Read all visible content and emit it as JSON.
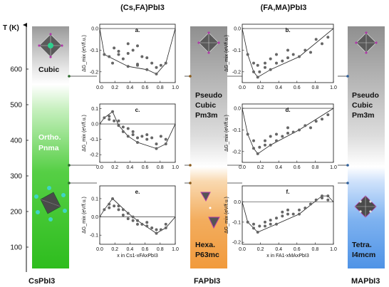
{
  "figure": {
    "col_titles": [
      "(Cs,FA)PbI3",
      "(FA,MA)PbI3"
    ],
    "temp_axis": {
      "label": "T (K)",
      "ticks": [
        100,
        200,
        300,
        400,
        500,
        600
      ],
      "range": [
        40,
        720
      ]
    },
    "bottom_labels": [
      "CsPbI3",
      "FAPbI3",
      "MAPbI3"
    ],
    "bars": {
      "cs": {
        "labels": [
          "Cubic",
          "Ortho.",
          "Pnma"
        ],
        "colors": [
          "#bdbdbd",
          "#3ec43e"
        ]
      },
      "fa": {
        "labels": [
          "Pseudo",
          "Cubic",
          "Pm3m",
          "Hexa.",
          "P63mc"
        ],
        "colors": [
          "#bdbdbd",
          "#f2a64c"
        ]
      },
      "ma": {
        "labels": [
          "Pseudo",
          "Cubic",
          "Pm3m",
          "Tetra.",
          "I4mcm"
        ],
        "colors": [
          "#bdbdbd",
          "#5a9de8"
        ]
      }
    },
    "marker_temps": {
      "cs": [
        580,
        330,
        280
      ],
      "fa": [
        580,
        330,
        280
      ],
      "ma": [
        580,
        330,
        280
      ]
    }
  },
  "chart_data": [
    {
      "type": "scatter",
      "panel": "a.",
      "column": "(Cs,FA)PbI3",
      "ylabel": "ΔG_mix (eV/f.u.)",
      "xlim": [
        0,
        1
      ],
      "ylim": [
        -0.25,
        0.02
      ],
      "yticks": [
        0.0,
        -0.1,
        -0.2
      ],
      "xticks": [
        0.0,
        0.2,
        0.4,
        0.6,
        0.8,
        1.0
      ],
      "show_xticks": true,
      "xlabel": "",
      "hull": [
        [
          0,
          0
        ],
        [
          0.06,
          -0.12
        ],
        [
          0.375,
          -0.175
        ],
        [
          0.625,
          -0.19
        ],
        [
          0.75,
          -0.21
        ],
        [
          0.875,
          -0.16
        ],
        [
          1,
          0
        ]
      ],
      "points": [
        [
          0.06,
          -0.12
        ],
        [
          0.125,
          -0.13
        ],
        [
          0.17,
          -0.16
        ],
        [
          0.19,
          -0.09
        ],
        [
          0.25,
          -0.12
        ],
        [
          0.25,
          -0.105
        ],
        [
          0.31,
          -0.14
        ],
        [
          0.375,
          -0.175
        ],
        [
          0.375,
          -0.07
        ],
        [
          0.375,
          -0.115
        ],
        [
          0.44,
          -0.1
        ],
        [
          0.5,
          -0.165
        ],
        [
          0.5,
          -0.17
        ],
        [
          0.5,
          -0.08
        ],
        [
          0.56,
          -0.13
        ],
        [
          0.625,
          -0.19
        ],
        [
          0.625,
          -0.135
        ],
        [
          0.69,
          -0.16
        ],
        [
          0.75,
          -0.21
        ],
        [
          0.75,
          -0.18
        ],
        [
          0.81,
          -0.17
        ],
        [
          0.875,
          -0.16
        ]
      ]
    },
    {
      "type": "scatter",
      "panel": "b.",
      "column": "(FA,MA)PbI3",
      "ylabel": "ΔG_mix (eV/f.u.)",
      "xlim": [
        0,
        1
      ],
      "ylim": [
        -0.25,
        0.02
      ],
      "yticks": [
        0.0,
        -0.1,
        -0.2
      ],
      "xticks": [
        0.0,
        0.2,
        0.4,
        0.6,
        0.8,
        1.0
      ],
      "show_xticks": true,
      "xlabel": "",
      "hull": [
        [
          0,
          0
        ],
        [
          0.06,
          -0.12
        ],
        [
          0.125,
          -0.2
        ],
        [
          0.17,
          -0.225
        ],
        [
          0.31,
          -0.19
        ],
        [
          0.625,
          -0.13
        ],
        [
          1,
          0
        ]
      ],
      "points": [
        [
          0.06,
          -0.12
        ],
        [
          0.125,
          -0.2
        ],
        [
          0.125,
          -0.16
        ],
        [
          0.17,
          -0.225
        ],
        [
          0.17,
          -0.17
        ],
        [
          0.19,
          -0.2
        ],
        [
          0.25,
          -0.16
        ],
        [
          0.25,
          -0.18
        ],
        [
          0.31,
          -0.19
        ],
        [
          0.31,
          -0.14
        ],
        [
          0.375,
          -0.16
        ],
        [
          0.375,
          -0.12
        ],
        [
          0.44,
          -0.15
        ],
        [
          0.5,
          -0.1
        ],
        [
          0.5,
          -0.135
        ],
        [
          0.56,
          -0.12
        ],
        [
          0.625,
          -0.13
        ],
        [
          0.69,
          -0.1
        ],
        [
          0.75,
          -0.11
        ],
        [
          0.81,
          -0.05
        ],
        [
          0.875,
          -0.07
        ],
        [
          0.94,
          -0.04
        ]
      ]
    },
    {
      "type": "scatter",
      "panel": "c.",
      "column": "(Cs,FA)PbI3",
      "ylabel": "ΔG_mix (eV/f.u.)",
      "xlim": [
        0,
        1
      ],
      "ylim": [
        -0.25,
        0.13
      ],
      "yticks": [
        0.1,
        0.0,
        -0.1,
        -0.2
      ],
      "xticks": [
        0.0,
        0.2,
        0.4,
        0.6,
        0.8,
        1.0
      ],
      "show_xticks": true,
      "xlabel": "",
      "hull": [
        [
          0,
          0
        ],
        [
          0.06,
          0.04
        ],
        [
          0.17,
          0.08
        ],
        [
          0.25,
          -0.01
        ],
        [
          0.375,
          -0.08
        ],
        [
          0.5,
          -0.12
        ],
        [
          0.75,
          -0.16
        ],
        [
          0.875,
          -0.13
        ],
        [
          1,
          0
        ]
      ],
      "points": [
        [
          0.06,
          0.04
        ],
        [
          0.125,
          0.05
        ],
        [
          0.125,
          0.03
        ],
        [
          0.17,
          0.08
        ],
        [
          0.19,
          0.02
        ],
        [
          0.25,
          0.02
        ],
        [
          0.25,
          -0.01
        ],
        [
          0.31,
          -0.02
        ],
        [
          0.31,
          -0.05
        ],
        [
          0.375,
          -0.08
        ],
        [
          0.375,
          -0.03
        ],
        [
          0.44,
          -0.05
        ],
        [
          0.44,
          -0.07
        ],
        [
          0.5,
          -0.12
        ],
        [
          0.5,
          -0.09
        ],
        [
          0.56,
          -0.08
        ],
        [
          0.625,
          -0.1
        ],
        [
          0.625,
          -0.07
        ],
        [
          0.69,
          -0.09
        ],
        [
          0.75,
          -0.16
        ],
        [
          0.75,
          -0.13
        ],
        [
          0.81,
          -0.08
        ],
        [
          0.875,
          -0.13
        ],
        [
          0.875,
          -0.1
        ]
      ]
    },
    {
      "type": "scatter",
      "panel": "d.",
      "column": "(FA,MA)PbI3",
      "ylabel": "ΔG_mix (eV/f.u.)",
      "xlim": [
        0,
        1
      ],
      "ylim": [
        -0.25,
        0.02
      ],
      "yticks": [
        0.0,
        -0.1,
        -0.2
      ],
      "xticks": [
        0.0,
        0.2,
        0.4,
        0.6,
        0.8,
        1.0
      ],
      "show_xticks": true,
      "xlabel": "",
      "hull": [
        [
          0,
          0
        ],
        [
          0.06,
          -0.12
        ],
        [
          0.125,
          -0.185
        ],
        [
          0.17,
          -0.21
        ],
        [
          0.31,
          -0.17
        ],
        [
          0.625,
          -0.1
        ],
        [
          1,
          0
        ]
      ],
      "points": [
        [
          0.06,
          -0.12
        ],
        [
          0.125,
          -0.185
        ],
        [
          0.125,
          -0.15
        ],
        [
          0.17,
          -0.21
        ],
        [
          0.19,
          -0.18
        ],
        [
          0.25,
          -0.15
        ],
        [
          0.25,
          -0.17
        ],
        [
          0.31,
          -0.17
        ],
        [
          0.31,
          -0.13
        ],
        [
          0.375,
          -0.15
        ],
        [
          0.375,
          -0.12
        ],
        [
          0.44,
          -0.13
        ],
        [
          0.5,
          -0.09
        ],
        [
          0.5,
          -0.115
        ],
        [
          0.56,
          -0.11
        ],
        [
          0.625,
          -0.1
        ],
        [
          0.69,
          -0.08
        ],
        [
          0.75,
          -0.09
        ],
        [
          0.81,
          -0.06
        ],
        [
          0.875,
          -0.05
        ],
        [
          0.94,
          -0.03
        ]
      ]
    },
    {
      "type": "scatter",
      "panel": "e.",
      "column": "(Cs,FA)PbI3",
      "ylabel": "ΔG_mix (eV/f.u.)",
      "xlim": [
        0,
        1
      ],
      "ylim": [
        -0.15,
        0.17
      ],
      "yticks": [
        0.1,
        0.0,
        -0.1
      ],
      "xticks": [
        0.0,
        0.2,
        0.4,
        0.6,
        0.8,
        1.0
      ],
      "show_xticks": true,
      "xlabel": "x in Cs1-xFAxPbI3",
      "hull": [
        [
          0,
          0
        ],
        [
          0.06,
          0.04
        ],
        [
          0.17,
          0.1
        ],
        [
          0.375,
          0.02
        ],
        [
          0.5,
          -0.02
        ],
        [
          0.75,
          -0.09
        ],
        [
          0.875,
          -0.06
        ],
        [
          1,
          0
        ]
      ],
      "points": [
        [
          0.06,
          0.04
        ],
        [
          0.125,
          0.07
        ],
        [
          0.125,
          0.05
        ],
        [
          0.17,
          0.1
        ],
        [
          0.19,
          0.06
        ],
        [
          0.25,
          0.06
        ],
        [
          0.25,
          0.04
        ],
        [
          0.31,
          0.01
        ],
        [
          0.31,
          0.04
        ],
        [
          0.375,
          0.02
        ],
        [
          0.375,
          -0.01
        ],
        [
          0.44,
          0.0
        ],
        [
          0.44,
          -0.02
        ],
        [
          0.5,
          -0.02
        ],
        [
          0.5,
          -0.04
        ],
        [
          0.56,
          -0.04
        ],
        [
          0.625,
          -0.05
        ],
        [
          0.625,
          -0.03
        ],
        [
          0.69,
          -0.06
        ],
        [
          0.75,
          -0.09
        ],
        [
          0.75,
          -0.07
        ],
        [
          0.81,
          -0.07
        ],
        [
          0.875,
          -0.06
        ],
        [
          0.875,
          -0.04
        ]
      ]
    },
    {
      "type": "scatter",
      "panel": "f.",
      "column": "(FA,MA)PbI3",
      "ylabel": "ΔG_mix (eV/f.u.)",
      "xlim": [
        0,
        1
      ],
      "ylim": [
        -0.21,
        0.08
      ],
      "yticks": [
        0.0,
        -0.1,
        -0.2
      ],
      "xticks": [
        0.0,
        0.2,
        0.4,
        0.6,
        0.8,
        1.0
      ],
      "show_xticks": true,
      "xlabel": "x in FA1-xMAxPbI3",
      "hull": [
        [
          0,
          0
        ],
        [
          0.06,
          -0.1
        ],
        [
          0.125,
          -0.13
        ],
        [
          0.17,
          -0.15
        ],
        [
          0.375,
          -0.11
        ],
        [
          0.625,
          -0.06
        ],
        [
          0.875,
          0.03
        ],
        [
          0.94,
          0.03
        ],
        [
          1,
          0
        ]
      ],
      "points": [
        [
          0.06,
          -0.1
        ],
        [
          0.125,
          -0.13
        ],
        [
          0.125,
          -0.11
        ],
        [
          0.17,
          -0.15
        ],
        [
          0.19,
          -0.12
        ],
        [
          0.25,
          -0.12
        ],
        [
          0.25,
          -0.1
        ],
        [
          0.31,
          -0.09
        ],
        [
          0.31,
          -0.11
        ],
        [
          0.375,
          -0.11
        ],
        [
          0.375,
          -0.08
        ],
        [
          0.44,
          -0.07
        ],
        [
          0.44,
          -0.05
        ],
        [
          0.5,
          -0.04
        ],
        [
          0.5,
          -0.06
        ],
        [
          0.56,
          -0.06
        ],
        [
          0.625,
          -0.06
        ],
        [
          0.625,
          -0.04
        ],
        [
          0.69,
          -0.03
        ],
        [
          0.75,
          -0.01
        ],
        [
          0.81,
          0.01
        ],
        [
          0.875,
          0.03
        ],
        [
          0.875,
          0.02
        ],
        [
          0.94,
          0.03
        ],
        [
          0.94,
          0.01
        ]
      ]
    }
  ]
}
